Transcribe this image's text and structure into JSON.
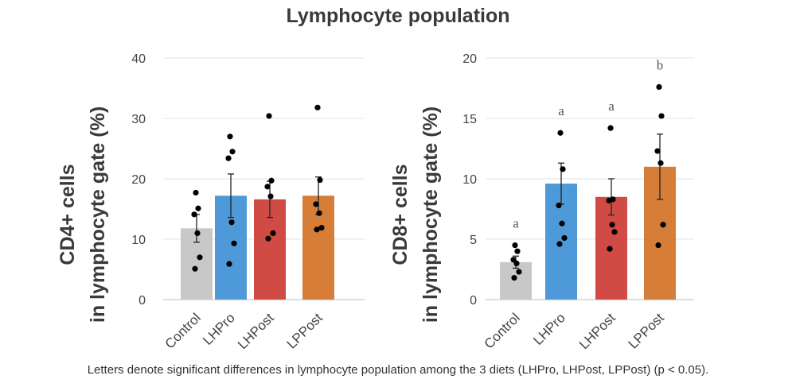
{
  "figure_title": "Lymphocyte population",
  "caption": "Letters denote significant differences in lymphocyte population among the 3 diets (LHPro, LHPost, LPPost) (p < 0.05).",
  "colors": {
    "Control": "#c8c8c8",
    "LHPro": "#4e9ad8",
    "LHPost": "#cf4b43",
    "LPPost": "#d67d38",
    "grid": "#e3e3e3",
    "axis": "#bdbdbd",
    "point": "#000000"
  },
  "chart_data": [
    {
      "type": "bar",
      "title": "",
      "ylabel_lines": [
        "CD4+ cells",
        "in lymphocyte gate (%)"
      ],
      "xlabel": "",
      "categories": [
        "Control",
        "LHPro",
        "LHPost",
        "LPPost"
      ],
      "values": [
        11.8,
        17.2,
        16.6,
        17.2
      ],
      "error": [
        2.3,
        3.6,
        3.0,
        3.1
      ],
      "points": [
        [
          17.7,
          15.1,
          14.1,
          11.0,
          7.0,
          5.1
        ],
        [
          27.0,
          24.5,
          23.4,
          12.8,
          9.3,
          5.9
        ],
        [
          30.4,
          19.7,
          18.7,
          17.1,
          11.0,
          10.1
        ],
        [
          31.8,
          19.8,
          15.8,
          14.3,
          11.9,
          11.6
        ]
      ],
      "sig_labels": [
        "",
        "",
        "",
        ""
      ],
      "ylim": [
        0,
        40
      ],
      "yticks": [
        0,
        10,
        20,
        30,
        40
      ],
      "grid": true
    },
    {
      "type": "bar",
      "title": "",
      "ylabel_lines": [
        "CD8+ cells",
        "in lymphocyte gate (%)"
      ],
      "xlabel": "",
      "categories": [
        "Control",
        "LHPro",
        "LHPost",
        "LPPost"
      ],
      "values": [
        3.1,
        9.6,
        8.5,
        11.0
      ],
      "error": [
        0.5,
        1.7,
        1.5,
        2.7
      ],
      "points": [
        [
          4.5,
          4.0,
          3.3,
          3.0,
          2.3,
          1.8
        ],
        [
          13.8,
          10.8,
          7.8,
          6.3,
          5.1,
          4.6
        ],
        [
          14.2,
          8.3,
          8.2,
          6.2,
          5.6,
          4.2
        ],
        [
          17.6,
          15.2,
          12.3,
          11.3,
          6.2,
          4.5
        ]
      ],
      "sig_labels": [
        "a",
        "a",
        "a",
        "b"
      ],
      "ylim": [
        0,
        20
      ],
      "yticks": [
        0,
        5,
        10,
        15,
        20
      ],
      "grid": true
    }
  ]
}
